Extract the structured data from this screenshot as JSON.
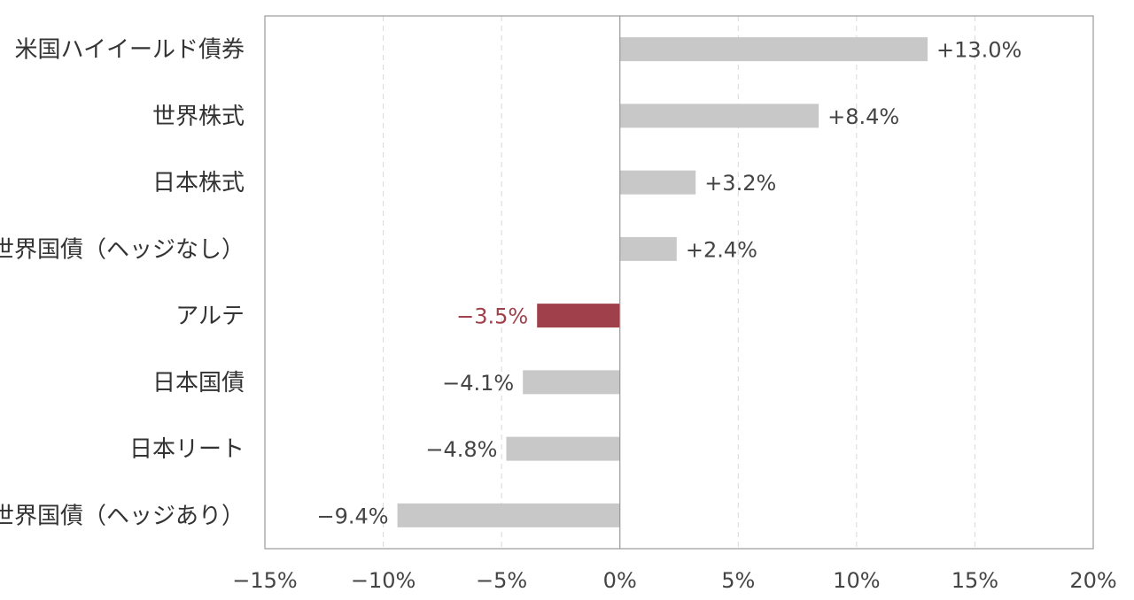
{
  "chart_data": {
    "type": "bar",
    "orientation": "horizontal",
    "categories": [
      "米国ハイイールド債券",
      "世界株式",
      "日本株式",
      "世界国債（ヘッジなし）",
      "アルテ",
      "日本国債",
      "日本リート",
      "世界国債（ヘッジあり）"
    ],
    "values": [
      13.0,
      8.4,
      3.2,
      2.4,
      -3.5,
      -4.1,
      -4.8,
      -9.4
    ],
    "value_labels": [
      "+13.0%",
      "+8.4%",
      "+3.2%",
      "+2.4%",
      "−3.5%",
      "−4.1%",
      "−4.8%",
      "−9.4%"
    ],
    "highlight_index": 4,
    "xlim": [
      -15,
      20
    ],
    "xticks": [
      -15,
      -10,
      -5,
      0,
      5,
      10,
      15,
      20
    ],
    "xtick_labels": [
      "−15%",
      "−10%",
      "−5%",
      "0%",
      "5%",
      "10%",
      "15%",
      "20%"
    ],
    "grid": "vertical-dashed",
    "title": "",
    "xlabel": "",
    "ylabel": "",
    "colors": {
      "bar": "#c8c8c8",
      "highlight_bar": "#a0404a",
      "highlight_label": "#a0404a",
      "grid": "#d9d9d9",
      "axis": "#999999",
      "frame": "#999999"
    }
  }
}
